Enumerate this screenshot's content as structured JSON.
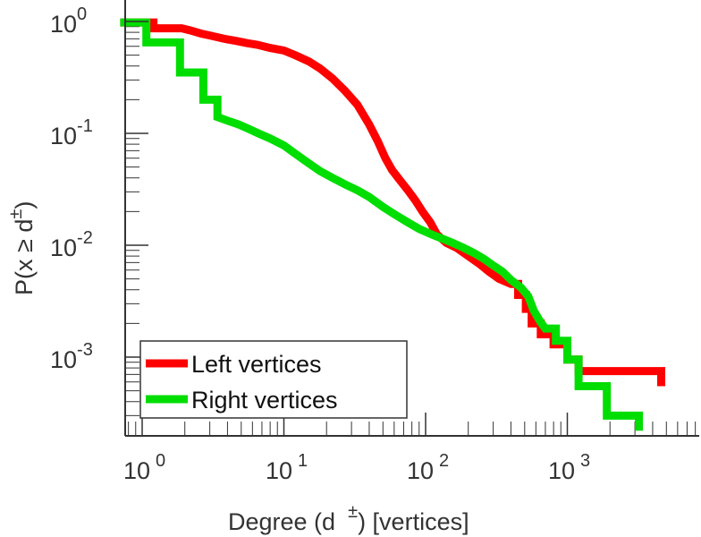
{
  "chart_data": {
    "type": "line",
    "scale": "log-log",
    "xlabel_main": "Degree (d",
    "xlabel_sup": "±",
    "xlabel_tail": ") [vertices]",
    "ylabel_main": "P(x ≥ d",
    "ylabel_sup": "±",
    "ylabel_tail": ")",
    "xlim": [
      0.7,
      7000
    ],
    "ylim": [
      0.00022,
      1.1
    ],
    "x_ticks": [
      {
        "value": 1,
        "base": "10",
        "exp": "0"
      },
      {
        "value": 10,
        "base": "10",
        "exp": "1"
      },
      {
        "value": 100,
        "base": "10",
        "exp": "2"
      },
      {
        "value": 1000,
        "base": "10",
        "exp": "3"
      }
    ],
    "y_ticks": [
      {
        "value": 1,
        "base": "10",
        "exp": "0"
      },
      {
        "value": 0.1,
        "base": "10",
        "exp": "-1"
      },
      {
        "value": 0.01,
        "base": "10",
        "exp": "-2"
      },
      {
        "value": 0.001,
        "base": "10",
        "exp": "-3"
      }
    ],
    "legend_position": "bottom-left",
    "series": [
      {
        "name": "Left vertices",
        "color": "#ff0000",
        "points": [
          [
            0.7,
            0.98
          ],
          [
            1.2,
            0.98
          ],
          [
            1.2,
            0.87
          ],
          [
            1.9,
            0.87
          ],
          [
            2.2,
            0.83
          ],
          [
            2.6,
            0.78
          ],
          [
            3,
            0.75
          ],
          [
            3.8,
            0.7
          ],
          [
            4.6,
            0.67
          ],
          [
            5.5,
            0.64
          ],
          [
            6.5,
            0.62
          ],
          [
            8,
            0.58
          ],
          [
            10,
            0.55
          ],
          [
            12,
            0.5
          ],
          [
            15,
            0.44
          ],
          [
            18,
            0.38
          ],
          [
            22,
            0.31
          ],
          [
            27,
            0.24
          ],
          [
            33,
            0.18
          ],
          [
            40,
            0.12
          ],
          [
            46,
            0.085
          ],
          [
            52,
            0.06
          ],
          [
            58,
            0.047
          ],
          [
            66,
            0.038
          ],
          [
            75,
            0.031
          ],
          [
            85,
            0.025
          ],
          [
            95,
            0.02
          ],
          [
            108,
            0.016
          ],
          [
            120,
            0.0125
          ],
          [
            140,
            0.0105
          ],
          [
            165,
            0.0095
          ],
          [
            200,
            0.008
          ],
          [
            240,
            0.0068
          ],
          [
            280,
            0.0058
          ],
          [
            330,
            0.005
          ],
          [
            400,
            0.0045
          ],
          [
            450,
            0.0045
          ],
          [
            450,
            0.0036
          ],
          [
            510,
            0.0036
          ],
          [
            510,
            0.0027
          ],
          [
            560,
            0.0027
          ],
          [
            560,
            0.002
          ],
          [
            650,
            0.002
          ],
          [
            650,
            0.0016
          ],
          [
            800,
            0.0016
          ],
          [
            800,
            0.0013
          ],
          [
            1000,
            0.0013
          ],
          [
            1000,
            0.00095
          ],
          [
            1200,
            0.00095
          ],
          [
            1200,
            0.00075
          ],
          [
            4600,
            0.00075
          ],
          [
            4600,
            0.00055
          ]
        ]
      },
      {
        "name": "Right vertices",
        "color": "#00dd00",
        "points": [
          [
            0.7,
            0.98
          ],
          [
            1.07,
            0.98
          ],
          [
            1.07,
            0.65
          ],
          [
            1.85,
            0.65
          ],
          [
            1.85,
            0.35
          ],
          [
            2.7,
            0.35
          ],
          [
            2.7,
            0.2
          ],
          [
            3.4,
            0.2
          ],
          [
            3.4,
            0.14
          ],
          [
            4,
            0.13
          ],
          [
            4.8,
            0.12
          ],
          [
            5.6,
            0.11
          ],
          [
            6.6,
            0.1
          ],
          [
            8,
            0.09
          ],
          [
            10,
            0.078
          ],
          [
            12,
            0.066
          ],
          [
            15,
            0.054
          ],
          [
            18,
            0.046
          ],
          [
            22,
            0.04
          ],
          [
            27,
            0.035
          ],
          [
            33,
            0.031
          ],
          [
            40,
            0.027
          ],
          [
            50,
            0.022
          ],
          [
            60,
            0.019
          ],
          [
            75,
            0.016
          ],
          [
            90,
            0.014
          ],
          [
            110,
            0.0125
          ],
          [
            130,
            0.0115
          ],
          [
            155,
            0.0105
          ],
          [
            185,
            0.0095
          ],
          [
            220,
            0.0085
          ],
          [
            260,
            0.0075
          ],
          [
            300,
            0.0066
          ],
          [
            350,
            0.0058
          ],
          [
            400,
            0.0049
          ],
          [
            470,
            0.0042
          ],
          [
            530,
            0.0035
          ],
          [
            580,
            0.0026
          ],
          [
            640,
            0.0021
          ],
          [
            700,
            0.0018
          ],
          [
            830,
            0.0018
          ],
          [
            830,
            0.0014
          ],
          [
            1000,
            0.0014
          ],
          [
            1000,
            0.00095
          ],
          [
            1200,
            0.00095
          ],
          [
            1200,
            0.00055
          ],
          [
            1900,
            0.00055
          ],
          [
            1900,
            0.0003
          ],
          [
            3200,
            0.0003
          ],
          [
            3200,
            0.00022
          ]
        ]
      }
    ]
  }
}
